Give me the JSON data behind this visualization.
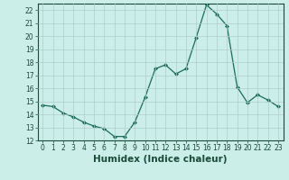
{
  "x": [
    0,
    1,
    2,
    3,
    4,
    5,
    6,
    7,
    8,
    9,
    10,
    11,
    12,
    13,
    14,
    15,
    16,
    17,
    18,
    19,
    20,
    21,
    22,
    23
  ],
  "y": [
    14.7,
    14.6,
    14.1,
    13.8,
    13.4,
    13.1,
    12.9,
    12.3,
    12.3,
    13.4,
    15.3,
    17.5,
    17.8,
    17.1,
    17.5,
    19.9,
    22.4,
    21.7,
    20.8,
    16.1,
    14.9,
    15.5,
    15.1,
    14.6
  ],
  "line_color": "#1a6b5a",
  "marker": "D",
  "marker_size": 2.0,
  "bg_color": "#cceee8",
  "grid_color": "#b0cccc",
  "xlabel": "Humidex (Indice chaleur)",
  "xlim": [
    -0.5,
    23.5
  ],
  "ylim": [
    12,
    22.5
  ],
  "yticks": [
    12,
    13,
    14,
    15,
    16,
    17,
    18,
    19,
    20,
    21,
    22
  ],
  "xticks": [
    0,
    1,
    2,
    3,
    4,
    5,
    6,
    7,
    8,
    9,
    10,
    11,
    12,
    13,
    14,
    15,
    16,
    17,
    18,
    19,
    20,
    21,
    22,
    23
  ],
  "xtick_labels": [
    "0",
    "1",
    "2",
    "3",
    "4",
    "5",
    "6",
    "7",
    "8",
    "9",
    "10",
    "11",
    "12",
    "13",
    "14",
    "15",
    "16",
    "17",
    "18",
    "19",
    "20",
    "21",
    "22",
    "23"
  ],
  "tick_fontsize": 5.5,
  "xlabel_fontsize": 7.5,
  "tick_color": "#1a4a3a",
  "spine_color": "#1a4a3a"
}
